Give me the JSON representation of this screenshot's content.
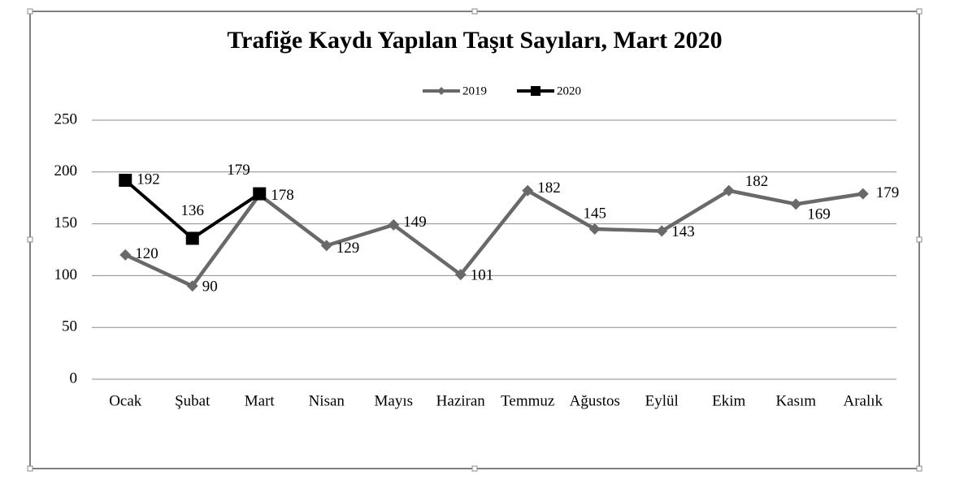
{
  "chart_data": {
    "type": "line",
    "title": "Trafiğe Kaydı Yapılan Taşıt Sayıları, Mart 2020",
    "categories": [
      "Ocak",
      "Şubat",
      "Mart",
      "Nisan",
      "Mayıs",
      "Haziran",
      "Temmuz",
      "Ağustos",
      "Eylül",
      "Ekim",
      "Kasım",
      "Aralık"
    ],
    "series": [
      {
        "name": "2019",
        "color": "#696969",
        "marker": "diamond",
        "values": [
          120,
          90,
          178,
          129,
          149,
          101,
          182,
          145,
          143,
          182,
          169,
          179
        ]
      },
      {
        "name": "2020",
        "color": "#000000",
        "marker": "square",
        "values": [
          192,
          136,
          179,
          null,
          null,
          null,
          null,
          null,
          null,
          null,
          null,
          null
        ]
      }
    ],
    "ylim": [
      0,
      250
    ],
    "yticks": [
      0,
      50,
      100,
      150,
      200,
      250
    ],
    "grid": true,
    "legend": "top"
  }
}
